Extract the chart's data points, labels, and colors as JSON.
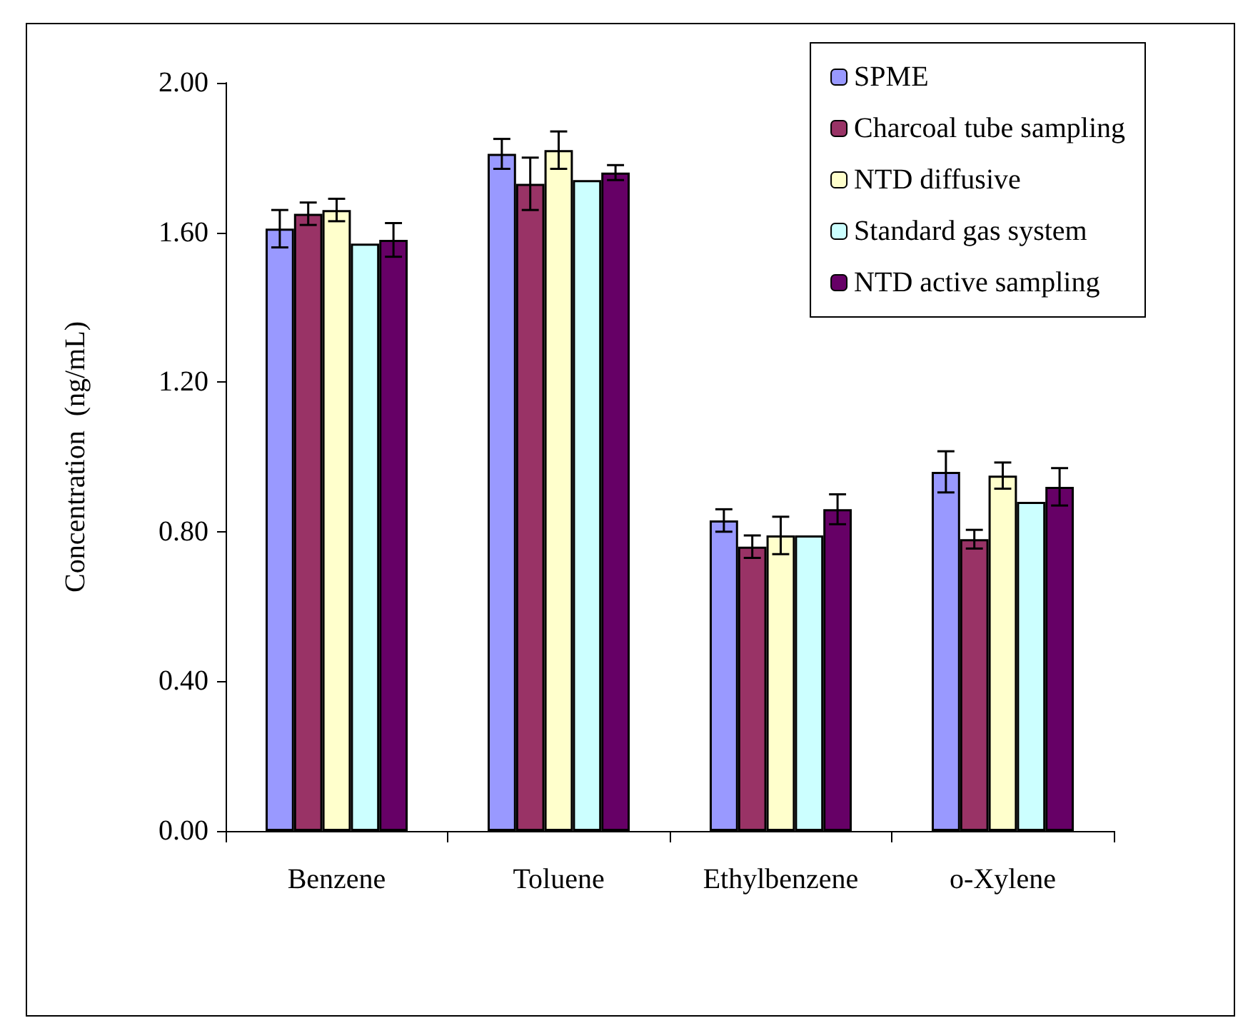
{
  "chart_data": {
    "type": "bar",
    "ylabel": "Concentration  (ng/mL)",
    "categories": [
      "Benzene",
      "Toluene",
      "Ethylbenzene",
      "o-Xylene"
    ],
    "series": [
      {
        "name": "SPME",
        "color": "#9999ff",
        "values": [
          1.61,
          1.81,
          0.83,
          0.96
        ],
        "errors": [
          0.05,
          0.04,
          0.03,
          0.055
        ]
      },
      {
        "name": "Charcoal tube sampling",
        "color": "#993366",
        "values": [
          1.65,
          1.73,
          0.76,
          0.78
        ],
        "errors": [
          0.03,
          0.07,
          0.03,
          0.025
        ]
      },
      {
        "name": "NTD diffusive",
        "color": "#ffffcc",
        "values": [
          1.66,
          1.82,
          0.79,
          0.95
        ],
        "errors": [
          0.03,
          0.05,
          0.05,
          0.035
        ]
      },
      {
        "name": "Standard gas system",
        "color": "#ccffff",
        "values": [
          1.57,
          1.74,
          0.79,
          0.88
        ]
      },
      {
        "name": "NTD active sampling",
        "color": "#660066",
        "values": [
          1.58,
          1.76,
          0.86,
          0.92
        ],
        "errors": [
          0.045,
          0.02,
          0.04,
          0.05
        ]
      }
    ],
    "ylim": [
      0,
      2
    ],
    "yticks": [
      {
        "value": 0,
        "label": "0.00"
      },
      {
        "value": 0.4,
        "label": "0.40"
      },
      {
        "value": 0.8,
        "label": "0.80"
      },
      {
        "value": 1.2,
        "label": "1.20"
      },
      {
        "value": 1.6,
        "label": "1.60"
      },
      {
        "value": 2,
        "label": "2.00"
      }
    ],
    "grid": false,
    "legend": "top right"
  }
}
